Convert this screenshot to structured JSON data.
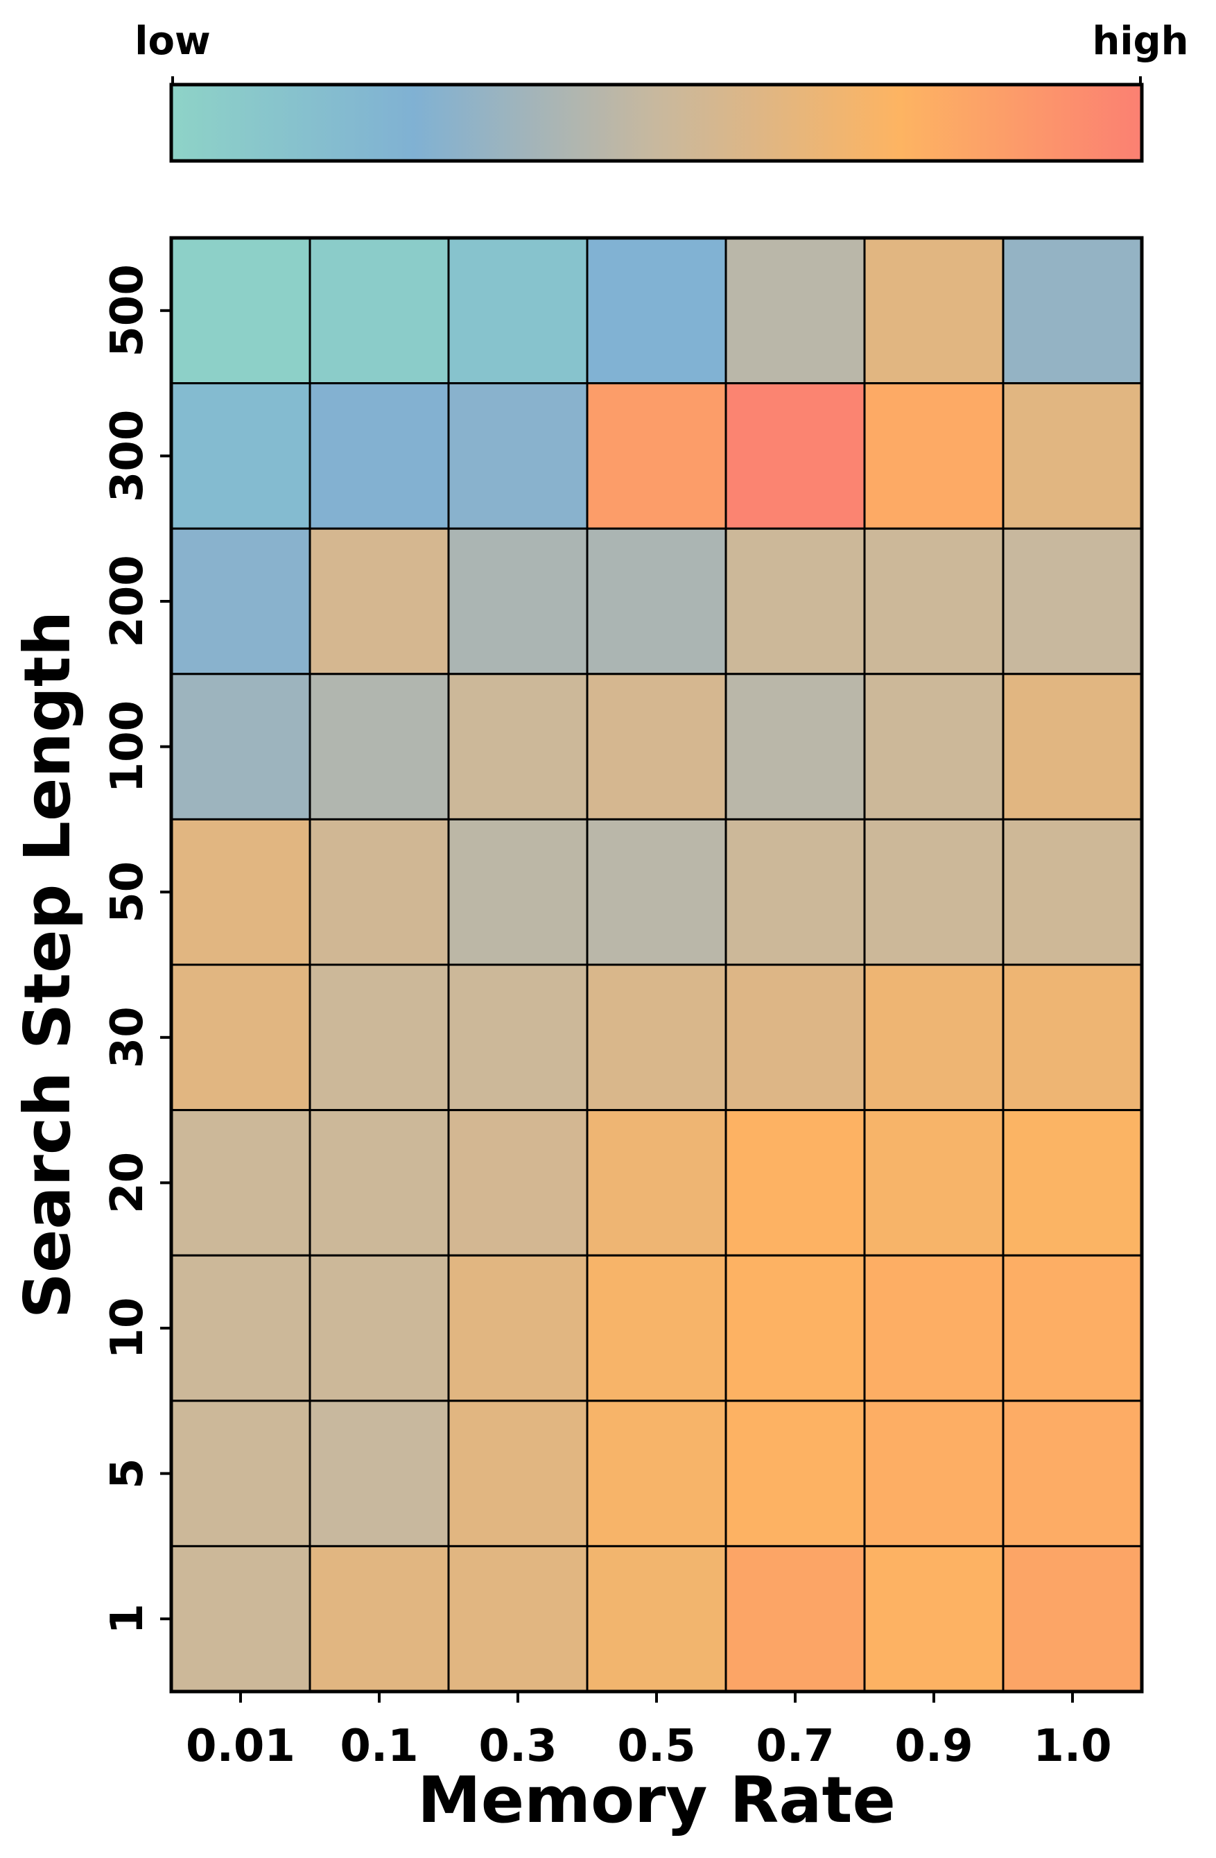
{
  "chart_data": {
    "type": "heatmap",
    "title": "",
    "xlabel": "Memory Rate",
    "ylabel": "Search Step Length",
    "x_categories": [
      "0.01",
      "0.1",
      "0.3",
      "0.5",
      "0.7",
      "0.9",
      "1.0"
    ],
    "y_categories": [
      "500",
      "300",
      "200",
      "100",
      "50",
      "30",
      "20",
      "10",
      "5",
      "1"
    ],
    "values": [
      [
        0.02,
        0.05,
        0.12,
        0.24,
        0.45,
        0.62,
        0.32
      ],
      [
        0.18,
        0.26,
        0.28,
        0.86,
        0.98,
        0.8,
        0.62
      ],
      [
        0.28,
        0.56,
        0.4,
        0.4,
        0.52,
        0.52,
        0.5
      ],
      [
        0.35,
        0.42,
        0.52,
        0.56,
        0.45,
        0.52,
        0.62
      ],
      [
        0.62,
        0.54,
        0.46,
        0.45,
        0.52,
        0.52,
        0.53
      ],
      [
        0.62,
        0.52,
        0.52,
        0.58,
        0.6,
        0.68,
        0.68
      ],
      [
        0.52,
        0.52,
        0.55,
        0.68,
        0.76,
        0.72,
        0.74
      ],
      [
        0.52,
        0.52,
        0.62,
        0.72,
        0.76,
        0.78,
        0.78
      ],
      [
        0.52,
        0.5,
        0.62,
        0.72,
        0.76,
        0.78,
        0.79
      ],
      [
        0.52,
        0.62,
        0.62,
        0.7,
        0.82,
        0.76,
        0.82
      ]
    ],
    "colorbar": {
      "low_label": "low",
      "high_label": "high",
      "colors": [
        "#8ed3c7",
        "#80b1d3",
        "#c8b89e",
        "#fdb462",
        "#fb8072"
      ]
    },
    "grid": true,
    "legend": "colorbar-top"
  }
}
